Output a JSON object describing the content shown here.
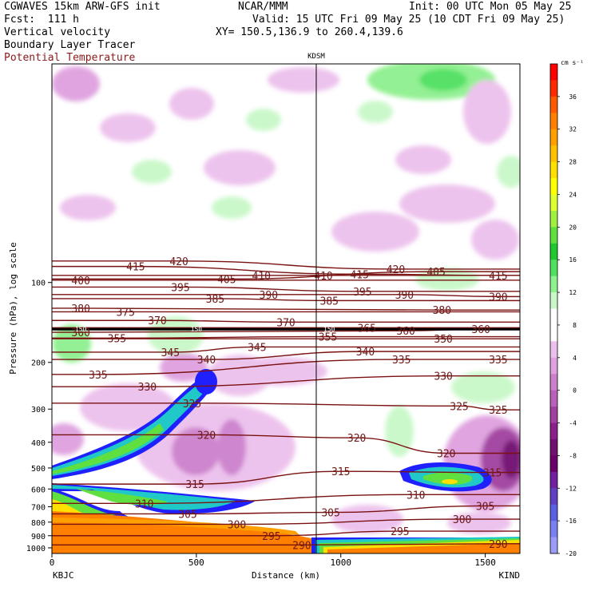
{
  "header": {
    "line1_left": "CGWAVES 15km ARW-GFS init",
    "line1_center": "NCAR/MMM",
    "line1_right": "Init: 00 UTC Mon 05 May 25",
    "line2_left": "Fcst:  111 h",
    "line2_right": "Valid: 15 UTC Fri 09 May 25 (10 CDT Fri 09 May 25)",
    "line3_left": "Vertical velocity",
    "line3_right": "XY= 150.5,136.9 to 260.4,139.6",
    "line4_left": "Boundary Layer Tracer",
    "line5_left": "Potential Temperature"
  },
  "colors": {
    "theta": "#7a1212",
    "theta_label": "#6e1a1a",
    "potential_temp_text": "#8b1a1a",
    "frame": "#000000"
  },
  "chart_data": {
    "type": "heatmap",
    "xlabel": "Distance (km)",
    "ylabel": "Pressure (hPa), log scale",
    "x_ticks": [
      0,
      500,
      1000,
      1500
    ],
    "xlim": [
      0,
      1620
    ],
    "y_ticks": [
      100,
      200,
      300,
      400,
      500,
      600,
      700,
      800,
      900,
      1000
    ],
    "y_scale": "log",
    "ylim": [
      1050,
      15
    ],
    "left_station": "KBJC",
    "right_station": "KIND",
    "marker_station": "KDSM",
    "marker_x": 915,
    "colorbar": {
      "unit": "cm s⁻¹",
      "labels": [
        "36",
        "32",
        "28",
        "24",
        "20",
        "16",
        "12",
        "8",
        "4",
        "0",
        "-4",
        "-8",
        "-12",
        "-16",
        "-20"
      ],
      "colors": [
        "#ff0000",
        "#ff2a00",
        "#ff5a00",
        "#ff8000",
        "#ffa000",
        "#ffc000",
        "#ffe000",
        "#ffff00",
        "#e0ff30",
        "#a0f040",
        "#60e040",
        "#20c830",
        "#50e060",
        "#8ff08f",
        "#c8f8c8",
        "#ffffff",
        "#ffffff",
        "#ecc0ec",
        "#dfa0df",
        "#cc80cc",
        "#b960b9",
        "#a040a0",
        "#8a208a",
        "#701070",
        "#6a006a",
        "#7020a0",
        "#6040c0",
        "#5a60e0",
        "#7a80f0",
        "#9a9cf8"
      ]
    },
    "theta_levels": [
      {
        "value": 290,
        "labels": [
          [
            865,
            975
          ],
          [
            1545,
            965
          ]
        ]
      },
      {
        "value": 295,
        "labels": [
          [
            760,
            900
          ],
          [
            1205,
            865
          ]
        ]
      },
      {
        "value": 300,
        "labels": [
          [
            640,
            815
          ],
          [
            1420,
            780
          ]
        ]
      },
      {
        "value": 305,
        "labels": [
          [
            470,
            745
          ],
          [
            965,
            735
          ],
          [
            1500,
            695
          ]
        ]
      },
      {
        "value": 310,
        "labels": [
          [
            320,
            680
          ],
          [
            1260,
            630
          ]
        ]
      },
      {
        "value": 315,
        "labels": [
          [
            495,
            575
          ],
          [
            1000,
            515
          ],
          [
            1525,
            520
          ]
        ]
      },
      {
        "value": 320,
        "labels": [
          [
            535,
            375
          ],
          [
            1055,
            385
          ],
          [
            1365,
            440
          ]
        ]
      },
      {
        "value": 325,
        "labels": [
          [
            485,
            285
          ],
          [
            1410,
            292
          ],
          [
            1545,
            302
          ]
        ]
      },
      {
        "value": 330,
        "labels": [
          [
            330,
            247
          ],
          [
            1355,
            225
          ]
        ]
      },
      {
        "value": 335,
        "labels": [
          [
            160,
            222
          ],
          [
            1210,
            195
          ],
          [
            1545,
            195
          ]
        ]
      },
      {
        "value": 340,
        "labels": [
          [
            535,
            195
          ],
          [
            1085,
            182
          ]
        ]
      },
      {
        "value": 345,
        "labels": [
          [
            410,
            183
          ],
          [
            710,
            175
          ]
        ]
      },
      {
        "value": 350,
        "labels": [
          [
            1355,
            163
          ]
        ]
      },
      {
        "value": 355,
        "labels": [
          [
            225,
            162
          ],
          [
            955,
            160
          ]
        ]
      },
      {
        "value": 360,
        "labels": [
          [
            100,
            154
          ],
          [
            1225,
            152
          ],
          [
            1485,
            150
          ]
        ]
      },
      {
        "value": 365,
        "labels": [
          [
            1090,
            148
          ]
        ]
      },
      {
        "value": 370,
        "labels": [
          [
            365,
            139
          ],
          [
            810,
            141
          ]
        ]
      },
      {
        "value": 375,
        "labels": [
          [
            255,
            129
          ]
        ]
      },
      {
        "value": 380,
        "labels": [
          [
            100,
            125
          ],
          [
            1350,
            127
          ]
        ]
      },
      {
        "value": 385,
        "labels": [
          [
            565,
            115
          ],
          [
            960,
            117
          ]
        ]
      },
      {
        "value": 390,
        "labels": [
          [
            750,
            111
          ],
          [
            1220,
            111
          ],
          [
            1545,
            113
          ]
        ]
      },
      {
        "value": 395,
        "labels": [
          [
            445,
            104
          ],
          [
            1075,
            108
          ]
        ]
      },
      {
        "value": 400,
        "labels": [
          [
            100,
            98
          ]
        ]
      },
      {
        "value": 405,
        "labels": [
          [
            605,
            97
          ],
          [
            1330,
            91
          ]
        ]
      },
      {
        "value": 410,
        "labels": [
          [
            725,
            94
          ],
          [
            940,
            94
          ]
        ]
      },
      {
        "value": 415,
        "labels": [
          [
            290,
            87
          ],
          [
            1065,
            93
          ],
          [
            1545,
            94
          ]
        ]
      },
      {
        "value": 420,
        "labels": [
          [
            440,
            83
          ],
          [
            1190,
            89
          ]
        ]
      }
    ],
    "tropopause_label": "150"
  }
}
